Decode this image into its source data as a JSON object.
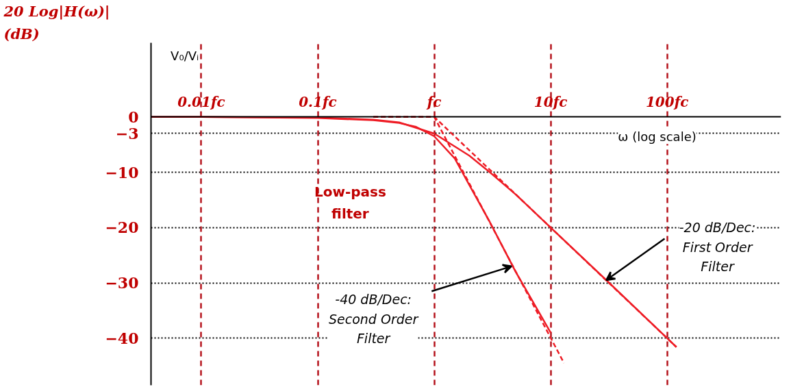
{
  "chart_data": {
    "type": "line",
    "ylabel": "20 Log|H(ω)|\n(dB)",
    "xlabel": "ω (log scale)",
    "log": "x",
    "xlim": [
      0.0037,
      950
    ],
    "ylim": [
      -48.5,
      13.4
    ],
    "xticks": [
      {
        "value": 0.01,
        "label": "0.01fc"
      },
      {
        "value": 0.1,
        "label": "0.1fc"
      },
      {
        "value": 1,
        "label": "fc"
      },
      {
        "value": 10,
        "label": "10fc"
      },
      {
        "value": 100,
        "label": "100fc"
      }
    ],
    "yticks": [
      0,
      -3,
      -10,
      -20,
      -30,
      -40
    ],
    "grid": true,
    "marker": "none",
    "series": [
      {
        "color": "#ee1c25",
        "line_style": "solid",
        "x": [
          0.0037,
          0.01,
          0.1,
          0.3,
          0.5,
          1,
          2,
          3,
          5,
          10,
          30,
          100,
          120
        ],
        "values": [
          0,
          0,
          -0.1,
          -0.5,
          -1,
          -3,
          -7,
          -10,
          -14,
          -20,
          -29.5,
          -40,
          -41.6
        ]
      },
      {
        "color": "#ee1c25",
        "line_style": "solid",
        "x": [
          0.0037,
          0.01,
          0.1,
          0.3,
          0.5,
          0.7,
          1,
          1.5,
          2,
          3,
          5,
          10
        ],
        "values": [
          0,
          0,
          -0.2,
          -0.6,
          -1.1,
          -1.8,
          -3.5,
          -7.5,
          -12.3,
          -19,
          -28,
          -39
        ]
      },
      {
        "color": "#ee1c25",
        "line_style": "dashed",
        "x": [
          0.3,
          1,
          120
        ],
        "values": [
          0,
          0,
          -41.6
        ]
      },
      {
        "color": "#ee1c25",
        "line_style": "dashed",
        "x": [
          0.3,
          1,
          13
        ],
        "values": [
          0,
          0,
          -44.5
        ]
      }
    ],
    "annotations": [
      "V₀/Vᵢ",
      "Low-pass\nfilter",
      {
        "text": "-40 dB/Dec:\nSecond Order\nFilter",
        "x": 4.6,
        "y": -27
      },
      {
        "text": "-20 dB/Dec:\nFirst Order\nFilter",
        "x": 30,
        "y": -29.5
      }
    ]
  }
}
